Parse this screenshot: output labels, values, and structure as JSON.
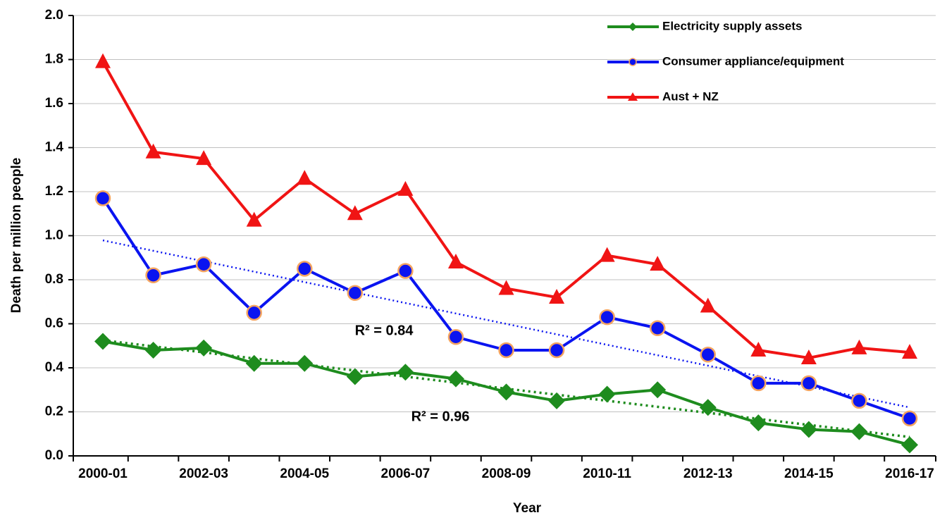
{
  "chart_data": {
    "type": "line",
    "xlabel": "Year",
    "ylabel": "Death per million people",
    "categories": [
      "2000-01",
      null,
      "2002-03",
      null,
      "2004-05",
      null,
      "2006-07",
      null,
      "2008-09",
      null,
      "2010-11",
      null,
      "2012-13",
      null,
      "2014-15",
      null,
      "2016-17"
    ],
    "series": [
      {
        "name": "Electricity supply assets",
        "color": "#1e8c1e",
        "marker": "diamond",
        "trendline": true,
        "values": [
          0.52,
          0.48,
          0.49,
          0.42,
          0.42,
          0.36,
          0.38,
          0.35,
          0.29,
          0.25,
          0.28,
          0.3,
          0.22,
          0.15,
          0.12,
          0.11,
          0.05
        ]
      },
      {
        "name": "Consumer appliance/equipment",
        "color": "#0a14f0",
        "marker": "circle",
        "trendline": true,
        "values": [
          1.17,
          0.82,
          0.87,
          0.65,
          0.85,
          0.74,
          0.84,
          0.54,
          0.48,
          0.48,
          0.63,
          0.58,
          0.46,
          0.33,
          0.33,
          0.25,
          0.17
        ]
      },
      {
        "name": "Aust + NZ",
        "color": "#f01414",
        "marker": "triangle",
        "trendline": false,
        "values": [
          1.79,
          1.38,
          1.35,
          1.07,
          1.26,
          1.1,
          1.21,
          0.88,
          0.76,
          0.72,
          0.91,
          0.87,
          0.68,
          0.48,
          0.445,
          0.49,
          0.47
        ]
      }
    ],
    "annotations": [
      {
        "text": "R² = 0.84",
        "color": "#0a14f0",
        "series": 1
      },
      {
        "text": "R² = 0.96",
        "color": "#1e8c1e",
        "series": 0
      }
    ],
    "ylim": [
      0,
      2
    ],
    "yticks": [
      {
        "value": 0,
        "label": "0.0"
      },
      0.2,
      0.4,
      0.6,
      0.8,
      {
        "value": 1,
        "label": "1.0"
      },
      1.2,
      1.4,
      1.6,
      1.8,
      {
        "value": 2,
        "label": "2.0"
      }
    ],
    "grid": true,
    "legend": "upper right"
  }
}
